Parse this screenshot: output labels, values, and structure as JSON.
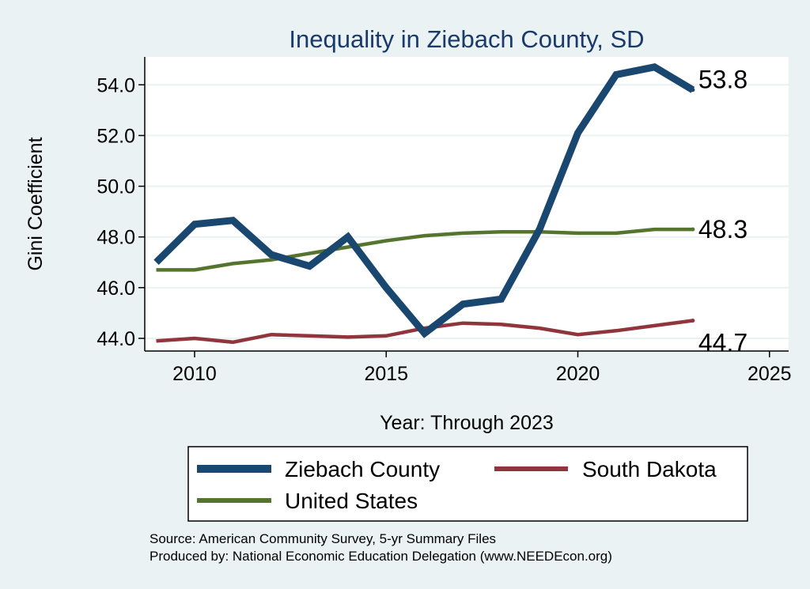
{
  "chart_data": {
    "type": "line",
    "title": "Inequality in Ziebach County, SD",
    "xlabel": "Year: Through 2023",
    "ylabel": "Gini Coefficient",
    "xlim": [
      2008.7,
      2025.5
    ],
    "ylim": [
      43.5,
      55.1
    ],
    "xticks": [
      2010,
      2015,
      2020,
      2025
    ],
    "yticks": [
      44.0,
      46.0,
      48.0,
      50.0,
      52.0,
      54.0
    ],
    "x": [
      2009,
      2010,
      2011,
      2012,
      2013,
      2014,
      2015,
      2016,
      2017,
      2018,
      2019,
      2020,
      2021,
      2022,
      2023
    ],
    "series": [
      {
        "name": "Ziebach County",
        "color": "#1a476f",
        "values": [
          47.0,
          48.5,
          48.65,
          47.3,
          46.85,
          48.0,
          46.0,
          44.2,
          45.35,
          45.55,
          48.3,
          52.1,
          54.4,
          54.7,
          53.8
        ],
        "end_label": "53.8"
      },
      {
        "name": "South Dakota",
        "color": "#90353b",
        "values": [
          43.9,
          44.0,
          43.85,
          44.15,
          44.1,
          44.05,
          44.1,
          44.4,
          44.6,
          44.55,
          44.4,
          44.15,
          44.3,
          44.5,
          44.7
        ],
        "end_label": "44.7"
      },
      {
        "name": "United States",
        "color": "#55752f",
        "values": [
          46.7,
          46.7,
          46.95,
          47.1,
          47.35,
          47.6,
          47.85,
          48.05,
          48.15,
          48.2,
          48.2,
          48.15,
          48.15,
          48.3,
          48.3
        ],
        "end_label": "48.3"
      }
    ],
    "legend_position": "bottom"
  },
  "source_lines": [
    "Source: American Community Survey, 5-yr Summary Files",
    "Produced by: National Economic Education Delegation (www.NEEDEcon.org)"
  ]
}
